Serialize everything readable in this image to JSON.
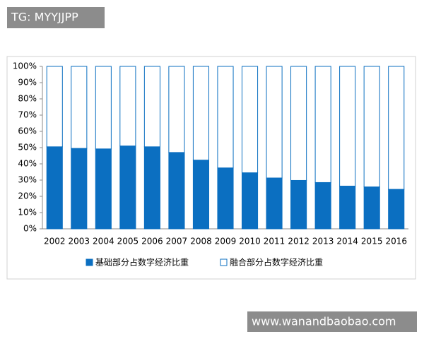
{
  "watermarks": [
    "TG: MYYJJPP",
    "www.wanandbaobao.com"
  ],
  "chart_data": {
    "type": "stacked-bar",
    "categories": [
      "2002",
      "2003",
      "2004",
      "2005",
      "2006",
      "2007",
      "2008",
      "2009",
      "2010",
      "2011",
      "2012",
      "2013",
      "2014",
      "2015",
      "2016"
    ],
    "series": [
      {
        "name": "基础部分占数字经济比重",
        "color": "#0b6fc1",
        "values": [
          50.5,
          49.5,
          49.2,
          51,
          50.5,
          47,
          42.3,
          37.5,
          34.5,
          31.3,
          29.8,
          28.5,
          26.3,
          25.8,
          24.3
        ]
      },
      {
        "name": "融合部分占数字经济比重",
        "color": "#ffffff",
        "values": [
          49.5,
          50.5,
          50.8,
          49,
          49.5,
          53,
          57.7,
          62.5,
          65.5,
          68.7,
          70.2,
          71.5,
          73.7,
          74.2,
          75.7
        ]
      }
    ],
    "edge_color": "#0b6fc1",
    "ylim": [
      0,
      100
    ],
    "yticks": [
      {
        "value": 0,
        "label": "0%"
      },
      {
        "value": 10,
        "label": "10%"
      },
      {
        "value": 20,
        "label": "20%"
      },
      {
        "value": 30,
        "label": "30%"
      },
      {
        "value": 40,
        "label": "40%"
      },
      {
        "value": 50,
        "label": "50%"
      },
      {
        "value": 60,
        "label": "60%"
      },
      {
        "value": 70,
        "label": "70%"
      },
      {
        "value": 80,
        "label": "80%"
      },
      {
        "value": 90,
        "label": "90%"
      },
      {
        "value": 100,
        "label": "100%"
      }
    ]
  }
}
